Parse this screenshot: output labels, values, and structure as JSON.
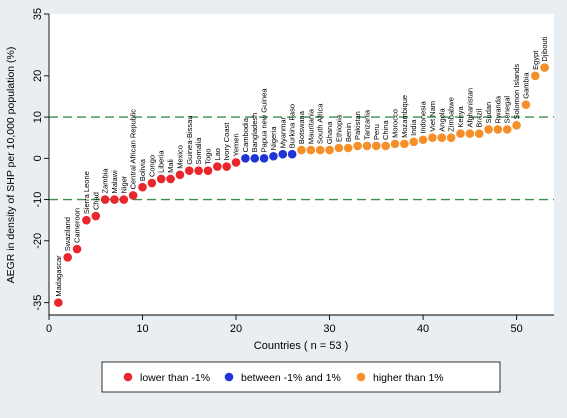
{
  "chart_data": {
    "type": "scatter",
    "xlabel": "Countries ( n = 53 )",
    "ylabel": "AEGR in density of SHP per 10,000 population (%)",
    "xlim": [
      0,
      54
    ],
    "ylim": [
      -38,
      35
    ],
    "xticks": [
      "0",
      "10",
      "20",
      "30",
      "40",
      "50"
    ],
    "yticks": [
      "35",
      "20",
      "10",
      "0",
      "-10",
      "-20",
      "-35"
    ],
    "reference_lines": [
      10,
      -10
    ],
    "colors": {
      "background": "#e9eef3",
      "plot_area": "#ffffff",
      "reference_line": "#3d8f4f",
      "lower": "#e8262b",
      "between": "#1f33d6",
      "higher": "#f48f2a"
    },
    "legend": [
      {
        "key": "lower",
        "label": "lower than -1%"
      },
      {
        "key": "between",
        "label": "between -1% and 1%"
      },
      {
        "key": "higher",
        "label": "higher than 1%"
      }
    ],
    "points": [
      {
        "x": 1,
        "y": -35,
        "label": "Madagascar",
        "group": "lower"
      },
      {
        "x": 2,
        "y": -24,
        "label": "Swaziland",
        "group": "lower"
      },
      {
        "x": 3,
        "y": -22,
        "label": "Cameroon",
        "group": "lower"
      },
      {
        "x": 4,
        "y": -15,
        "label": "Sierra Leone",
        "group": "lower"
      },
      {
        "x": 5,
        "y": -14,
        "label": "Chad",
        "group": "lower"
      },
      {
        "x": 6,
        "y": -10,
        "label": "Zambia",
        "group": "lower"
      },
      {
        "x": 7,
        "y": -10,
        "label": "Malawi",
        "group": "lower"
      },
      {
        "x": 8,
        "y": -10,
        "label": "Niger",
        "group": "lower"
      },
      {
        "x": 9,
        "y": -9,
        "label": "Central African Republic",
        "group": "lower"
      },
      {
        "x": 10,
        "y": -7,
        "label": "Bolivia",
        "group": "lower"
      },
      {
        "x": 11,
        "y": -6,
        "label": "Congo",
        "group": "lower"
      },
      {
        "x": 12,
        "y": -5,
        "label": "Liberia",
        "group": "lower"
      },
      {
        "x": 13,
        "y": -5,
        "label": "Mali",
        "group": "lower"
      },
      {
        "x": 14,
        "y": -4,
        "label": "Mexico",
        "group": "lower"
      },
      {
        "x": 15,
        "y": -3,
        "label": "Guinea-Bissau",
        "group": "lower"
      },
      {
        "x": 16,
        "y": -3,
        "label": "Somalia",
        "group": "lower"
      },
      {
        "x": 17,
        "y": -3,
        "label": "Togo",
        "group": "lower"
      },
      {
        "x": 18,
        "y": -2,
        "label": "Lao",
        "group": "lower"
      },
      {
        "x": 19,
        "y": -2,
        "label": "Ivory Coast",
        "group": "lower"
      },
      {
        "x": 20,
        "y": -1,
        "label": "Yemen",
        "group": "lower"
      },
      {
        "x": 21,
        "y": 0,
        "label": "Cambodia",
        "group": "between"
      },
      {
        "x": 22,
        "y": 0,
        "label": "Bangladesh",
        "group": "between"
      },
      {
        "x": 23,
        "y": 0,
        "label": "Papua new Guinea",
        "group": "between"
      },
      {
        "x": 24,
        "y": 0.5,
        "label": "Nigeria",
        "group": "between"
      },
      {
        "x": 25,
        "y": 1,
        "label": "Myanmar",
        "group": "between"
      },
      {
        "x": 26,
        "y": 1,
        "label": "Burkina Faso",
        "group": "between"
      },
      {
        "x": 27,
        "y": 2,
        "label": "Botswana",
        "group": "higher"
      },
      {
        "x": 28,
        "y": 2,
        "label": "Mauritania",
        "group": "higher"
      },
      {
        "x": 29,
        "y": 2,
        "label": "South Africa",
        "group": "higher"
      },
      {
        "x": 30,
        "y": 2,
        "label": "Ghana",
        "group": "higher"
      },
      {
        "x": 31,
        "y": 2.5,
        "label": "Ethiopia",
        "group": "higher"
      },
      {
        "x": 32,
        "y": 2.5,
        "label": "Benin",
        "group": "higher"
      },
      {
        "x": 33,
        "y": 3,
        "label": "Pakistan",
        "group": "higher"
      },
      {
        "x": 34,
        "y": 3,
        "label": "Tanzania",
        "group": "higher"
      },
      {
        "x": 35,
        "y": 3,
        "label": "Peru",
        "group": "higher"
      },
      {
        "x": 36,
        "y": 3,
        "label": "China",
        "group": "higher"
      },
      {
        "x": 37,
        "y": 3.5,
        "label": "Morocco",
        "group": "higher"
      },
      {
        "x": 38,
        "y": 3.5,
        "label": "Mozambique",
        "group": "higher"
      },
      {
        "x": 39,
        "y": 4,
        "label": "India",
        "group": "higher"
      },
      {
        "x": 40,
        "y": 4.5,
        "label": "Indonesia",
        "group": "higher"
      },
      {
        "x": 41,
        "y": 5,
        "label": "Viet Nam",
        "group": "higher"
      },
      {
        "x": 42,
        "y": 5,
        "label": "Angola",
        "group": "higher"
      },
      {
        "x": 43,
        "y": 5,
        "label": "Zimbabwe",
        "group": "higher"
      },
      {
        "x": 44,
        "y": 6,
        "label": "Kenya",
        "group": "higher"
      },
      {
        "x": 45,
        "y": 6,
        "label": "Afghanistan",
        "group": "higher"
      },
      {
        "x": 46,
        "y": 6,
        "label": "Brazil",
        "group": "higher"
      },
      {
        "x": 47,
        "y": 7,
        "label": "Sudan",
        "group": "higher"
      },
      {
        "x": 48,
        "y": 7,
        "label": "Rwanda",
        "group": "higher"
      },
      {
        "x": 49,
        "y": 7,
        "label": "Senegal",
        "group": "higher"
      },
      {
        "x": 50,
        "y": 8,
        "label": "Solomon Islands",
        "group": "higher"
      },
      {
        "x": 51,
        "y": 13,
        "label": "Gambia",
        "group": "higher"
      },
      {
        "x": 52,
        "y": 20,
        "label": "Egypt",
        "group": "higher"
      },
      {
        "x": 53,
        "y": 22,
        "label": "Djibouti",
        "group": "higher"
      }
    ]
  }
}
